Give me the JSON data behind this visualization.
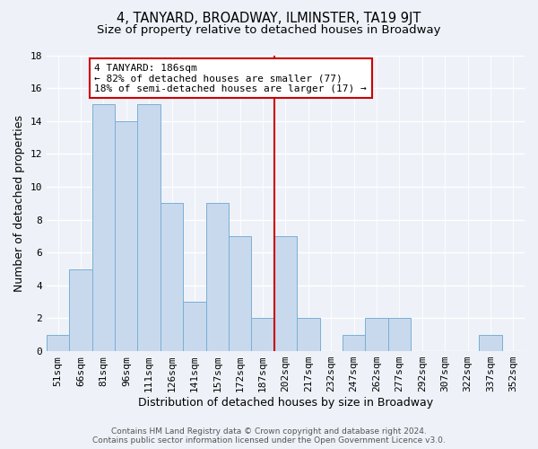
{
  "title": "4, TANYARD, BROADWAY, ILMINSTER, TA19 9JT",
  "subtitle": "Size of property relative to detached houses in Broadway",
  "xlabel": "Distribution of detached houses by size in Broadway",
  "ylabel": "Number of detached properties",
  "bar_categories": [
    "51sqm",
    "66sqm",
    "81sqm",
    "96sqm",
    "111sqm",
    "126sqm",
    "141sqm",
    "157sqm",
    "172sqm",
    "187sqm",
    "202sqm",
    "217sqm",
    "232sqm",
    "247sqm",
    "262sqm",
    "277sqm",
    "292sqm",
    "307sqm",
    "322sqm",
    "337sqm",
    "352sqm"
  ],
  "bar_values": [
    1,
    5,
    15,
    14,
    15,
    9,
    3,
    9,
    7,
    2,
    7,
    2,
    0,
    1,
    2,
    2,
    0,
    0,
    0,
    1,
    0
  ],
  "bar_color": "#c8d9ee",
  "bar_edge_color": "#7aafd4",
  "vline_x": 9.5,
  "vline_color": "#cc0000",
  "annotation_text": "4 TANYARD: 186sqm\n← 82% of detached houses are smaller (77)\n18% of semi-detached houses are larger (17) →",
  "annotation_box_color": "#cc0000",
  "ylim": [
    0,
    18
  ],
  "yticks": [
    0,
    2,
    4,
    6,
    8,
    10,
    12,
    14,
    16,
    18
  ],
  "footer_line1": "Contains HM Land Registry data © Crown copyright and database right 2024.",
  "footer_line2": "Contains public sector information licensed under the Open Government Licence v3.0.",
  "bg_color": "#eef2f8",
  "plot_bg_color": "#eef2f8",
  "title_fontsize": 10.5,
  "subtitle_fontsize": 9.5,
  "tick_fontsize": 8,
  "ylabel_fontsize": 9,
  "xlabel_fontsize": 9,
  "annot_fontsize": 8,
  "footer_fontsize": 6.5
}
